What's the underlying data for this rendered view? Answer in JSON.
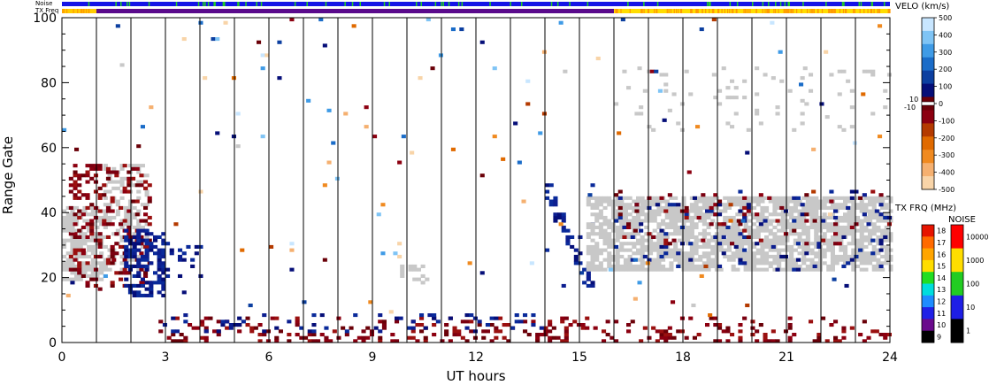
{
  "chart_data": {
    "type": "heatmap",
    "xlabel": "UT hours",
    "ylabel": "Range Gate",
    "xlim": [
      0,
      24
    ],
    "ylim": [
      0,
      100
    ],
    "x_ticks": [
      "0",
      "3",
      "6",
      "9",
      "12",
      "15",
      "18",
      "21",
      "24"
    ],
    "x_tick_values": [
      0,
      3,
      6,
      9,
      12,
      15,
      18,
      21,
      24
    ],
    "y_ticks": [
      "0",
      "20",
      "40",
      "60",
      "80",
      "100"
    ],
    "y_tick_values": [
      0,
      20,
      40,
      60,
      80,
      100
    ],
    "grid": "vertical lines at each hour",
    "status_bars": {
      "noise_label": "Noise",
      "txfreq_label": "TX Freq",
      "noise_color": "#1414e6",
      "noise_flecks_color": "#22cc22",
      "txfreq_segments": [
        {
          "start": 0,
          "end": 1,
          "color": "#ffcc00"
        },
        {
          "start": 1,
          "end": 16,
          "color": "#5a0a8c"
        },
        {
          "start": 16,
          "end": 24,
          "color": "#ffdd00"
        }
      ]
    },
    "colorbars": {
      "velocity": {
        "title": "VELO (km/s)",
        "ticks": [
          "500",
          "400",
          "300",
          "200",
          "100",
          "0",
          "-100",
          "-200",
          "-300",
          "-400",
          "-500"
        ],
        "tick_values": [
          500,
          400,
          300,
          200,
          100,
          0,
          -100,
          -200,
          -300,
          -400,
          -500
        ],
        "mid_labels": [
          "10",
          "-10"
        ],
        "colors": [
          "#c8e6ff",
          "#7fc4f5",
          "#3f9be6",
          "#1a6cc8",
          "#0c3fa0",
          "#050e78",
          "#6a0008",
          "#8c0010",
          "#b43a00",
          "#e06a00",
          "#f08a20",
          "#f5b070",
          "#f8d4a8"
        ],
        "ground_scatter_color": "#c8c8c8"
      },
      "tx_freq": {
        "title": "TX FRQ (MHz)",
        "ticks": [
          "18",
          "17",
          "16",
          "15",
          "14",
          "13",
          "12",
          "11",
          "10",
          "9"
        ],
        "tick_values": [
          18,
          17,
          16,
          15,
          14,
          13,
          12,
          11,
          10,
          9
        ],
        "colors": [
          "#e61400",
          "#ff6a00",
          "#ffa500",
          "#ffdd00",
          "#22dd22",
          "#00dddd",
          "#1e8cff",
          "#2020e6",
          "#6a0a8c",
          "#000000"
        ]
      },
      "noise": {
        "title": "NOISE",
        "ticks": [
          "10000",
          "1000",
          "100",
          "10",
          "1"
        ],
        "tick_values": [
          10000,
          1000,
          100,
          10,
          1
        ],
        "colors": [
          "#ff0000",
          "#ffdd00",
          "#22cc22",
          "#1e1ee6",
          "#000000"
        ]
      }
    },
    "regions": [
      {
        "name": "ground-scatter-early",
        "kind": "ground",
        "x": [
          0,
          1.2
        ],
        "y": [
          19,
          42
        ],
        "density": 0.7
      },
      {
        "name": "ground-scatter-rising",
        "kind": "ground",
        "x": [
          1.2,
          2.5
        ],
        "y": [
          22,
          55
        ],
        "density": 0.4
      },
      {
        "name": "negative-velocity-rising",
        "kind": "red",
        "x": [
          0.2,
          2.5
        ],
        "y": [
          16,
          55
        ],
        "density": 0.25
      },
      {
        "name": "positive-velocity-patch-2-3",
        "kind": "blue",
        "x": [
          1.8,
          3.0
        ],
        "y": [
          14,
          35
        ],
        "density": 0.55
      },
      {
        "name": "positive-velocity-patch-3-4",
        "kind": "blue",
        "x": [
          3.0,
          4.0
        ],
        "y": [
          20,
          31
        ],
        "density": 0.2
      },
      {
        "name": "near-range-red",
        "kind": "red",
        "x": [
          2.8,
          24
        ],
        "y": [
          0,
          8
        ],
        "density": 0.3
      },
      {
        "name": "near-range-blue",
        "kind": "blue",
        "x": [
          2.8,
          14
        ],
        "y": [
          3,
          9
        ],
        "density": 0.1
      },
      {
        "name": "ground-scatter-1000",
        "kind": "ground",
        "x": [
          9.8,
          10.6
        ],
        "y": [
          18,
          26
        ],
        "density": 0.3
      },
      {
        "name": "positive-velocity-streak-14-15",
        "kind": "streak",
        "x": [
          14.0,
          15.4
        ],
        "y": [
          17,
          49
        ],
        "density": 0.6
      },
      {
        "name": "ground-scatter-late",
        "kind": "ground",
        "x": [
          15.2,
          24
        ],
        "y": [
          22,
          45
        ],
        "density": 0.72
      },
      {
        "name": "positive-velocity-late",
        "kind": "blue",
        "x": [
          16,
          24
        ],
        "y": [
          22,
          47
        ],
        "density": 0.06
      },
      {
        "name": "negative-velocity-late",
        "kind": "red",
        "x": [
          16,
          24
        ],
        "y": [
          30,
          47
        ],
        "density": 0.06
      },
      {
        "name": "ground-scatter-far",
        "kind": "ground",
        "x": [
          16,
          24
        ],
        "y": [
          65,
          85
        ],
        "density": 0.05
      },
      {
        "name": "scattered-noise",
        "kind": "scatter",
        "x": [
          0,
          24
        ],
        "y": [
          8,
          100
        ],
        "density": 0.008
      }
    ]
  }
}
